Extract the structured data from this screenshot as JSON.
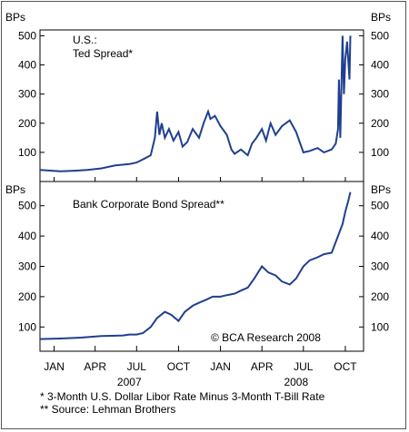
{
  "chart_data": [
    {
      "type": "line",
      "title": "U.S.:",
      "subtitle": "Ted Spread*",
      "ylabel_left": "BPs",
      "ylabel_right": "BPs",
      "ylim": [
        0,
        520
      ],
      "yticks": [
        100,
        200,
        300,
        400,
        500
      ],
      "grid": false,
      "color": "#1f3f8f",
      "series": [
        {
          "x": [
            "2006-12-01",
            "2007-01-15",
            "2007-02-15",
            "2007-03-15",
            "2007-04-15",
            "2007-05-15",
            "2007-06-15",
            "2007-07-01",
            "2007-07-20",
            "2007-08-01",
            "2007-08-10",
            "2007-08-15",
            "2007-08-20",
            "2007-08-25",
            "2007-09-01",
            "2007-09-10",
            "2007-09-20",
            "2007-10-01",
            "2007-10-10",
            "2007-10-20",
            "2007-11-01",
            "2007-11-15",
            "2007-11-25",
            "2007-12-05",
            "2007-12-10",
            "2007-12-20",
            "2008-01-01",
            "2008-01-15",
            "2008-01-25",
            "2008-02-01",
            "2008-02-15",
            "2008-03-01",
            "2008-03-10",
            "2008-03-20",
            "2008-04-01",
            "2008-04-10",
            "2008-04-20",
            "2008-05-01",
            "2008-05-15",
            "2008-06-01",
            "2008-06-15",
            "2008-07-01",
            "2008-07-15",
            "2008-08-01",
            "2008-08-15",
            "2008-09-01",
            "2008-09-10",
            "2008-09-15",
            "2008-09-17",
            "2008-09-20",
            "2008-09-25",
            "2008-09-28",
            "2008-10-01",
            "2008-10-05",
            "2008-10-10",
            "2008-10-12"
          ],
          "y": [
            40,
            35,
            37,
            40,
            45,
            55,
            60,
            65,
            80,
            90,
            150,
            240,
            160,
            200,
            150,
            180,
            140,
            170,
            120,
            135,
            180,
            150,
            200,
            240,
            215,
            225,
            190,
            160,
            110,
            95,
            110,
            90,
            130,
            150,
            180,
            140,
            200,
            160,
            190,
            210,
            170,
            100,
            105,
            115,
            100,
            110,
            130,
            180,
            350,
            150,
            500,
            300,
            420,
            480,
            350,
            500
          ]
        }
      ]
    },
    {
      "type": "line",
      "title": "Bank Corporate Bond Spread**",
      "ylabel_left": "BPs",
      "ylabel_right": "BPs",
      "ylim": [
        20,
        580
      ],
      "yticks": [
        100,
        200,
        300,
        400,
        500
      ],
      "grid": false,
      "color": "#1f3f8f",
      "annotation": "© BCA Research 2008",
      "series": [
        {
          "x": [
            "2006-12-01",
            "2007-01-15",
            "2007-03-01",
            "2007-04-15",
            "2007-06-01",
            "2007-06-15",
            "2007-07-01",
            "2007-07-15",
            "2007-08-01",
            "2007-08-15",
            "2007-09-01",
            "2007-09-15",
            "2007-10-01",
            "2007-10-15",
            "2007-11-01",
            "2007-11-15",
            "2007-12-01",
            "2007-12-15",
            "2008-01-01",
            "2008-01-15",
            "2008-02-01",
            "2008-02-15",
            "2008-03-01",
            "2008-03-15",
            "2008-04-01",
            "2008-04-15",
            "2008-05-01",
            "2008-05-15",
            "2008-06-01",
            "2008-06-15",
            "2008-07-01",
            "2008-07-15",
            "2008-08-01",
            "2008-08-15",
            "2008-09-01",
            "2008-09-15",
            "2008-09-25",
            "2008-10-01",
            "2008-10-08",
            "2008-10-12"
          ],
          "y": [
            60,
            62,
            65,
            70,
            72,
            75,
            75,
            80,
            100,
            130,
            150,
            140,
            120,
            150,
            170,
            180,
            190,
            200,
            200,
            205,
            210,
            220,
            230,
            260,
            300,
            280,
            270,
            250,
            240,
            260,
            300,
            320,
            330,
            340,
            345,
            400,
            440,
            480,
            520,
            545
          ]
        }
      ]
    }
  ],
  "x_axis": {
    "month_ticks": [
      "JAN",
      "APR",
      "JUL",
      "OCT",
      "JAN",
      "APR",
      "JUL",
      "OCT"
    ],
    "year_labels": [
      "2007",
      "2008"
    ]
  },
  "footnotes": [
    "*  3-Month U.S. Dollar Libor Rate Minus 3-Month T-Bill Rate",
    "** Source: Lehman Brothers"
  ]
}
